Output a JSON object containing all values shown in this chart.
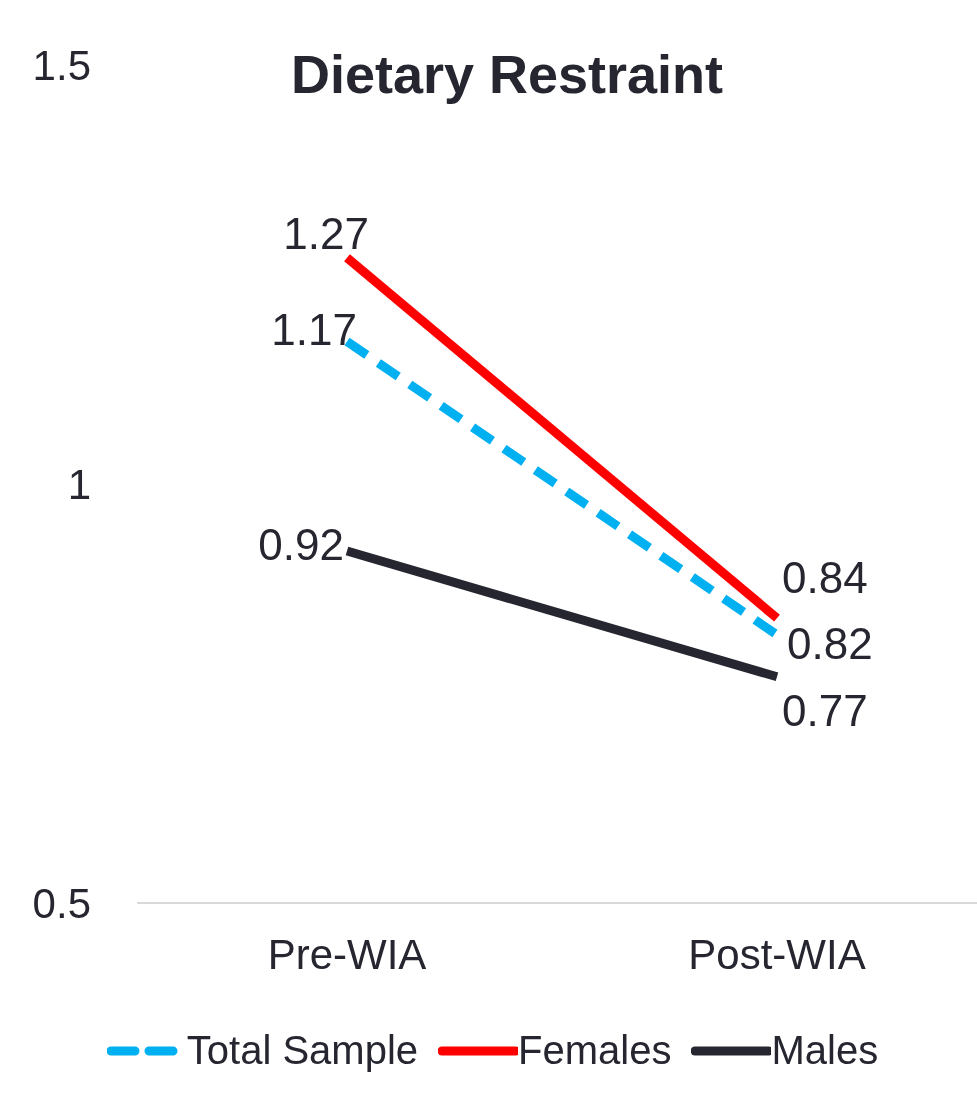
{
  "chart_data": {
    "type": "line",
    "title": "Dietary Restraint",
    "categories": [
      "Pre-WIA",
      "Post-WIA"
    ],
    "series": [
      {
        "name": "Total Sample",
        "color": "#00b0f0",
        "values": [
          1.17,
          0.82
        ],
        "line_style": "dashed"
      },
      {
        "name": "Females",
        "color": "#ff0000",
        "values": [
          1.27,
          0.84
        ],
        "line_style": "solid"
      },
      {
        "name": "Males",
        "color": "#262630",
        "values": [
          0.92,
          0.77
        ],
        "line_style": "solid"
      }
    ],
    "ylim": [
      0.5,
      1.5
    ],
    "yticks": [
      0.5,
      1,
      1.5
    ],
    "grid": false,
    "legend": "bottom",
    "marker": "none",
    "data_labels": true
  }
}
